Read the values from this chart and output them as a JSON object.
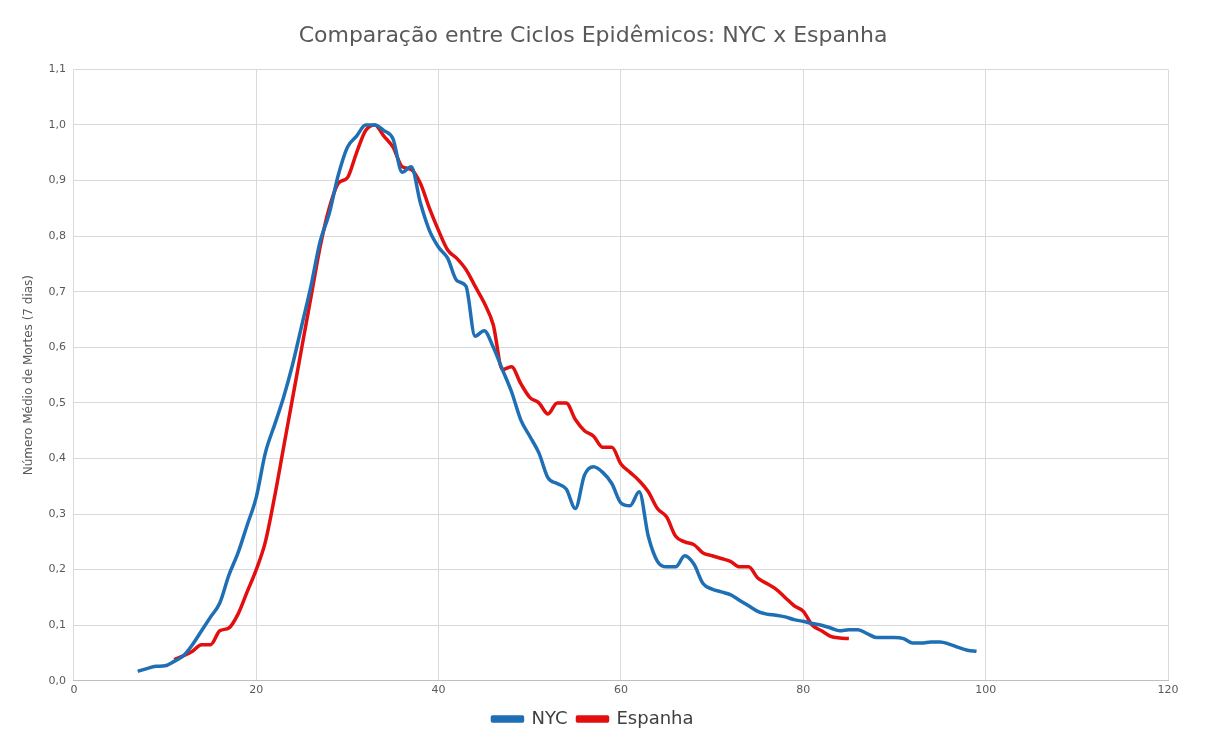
{
  "chart_data": {
    "type": "line",
    "title": "Comparação entre Ciclos Epidêmicos: NYC x Espanha",
    "ylabel": "Número Médio de Mortes (7 dias)",
    "xlim": [
      0,
      120
    ],
    "xticks": [
      0,
      20,
      40,
      60,
      80,
      100,
      120
    ],
    "ylim": [
      0,
      1.1
    ],
    "yticks": [
      {
        "value": 0,
        "label": "0,0"
      },
      {
        "value": 0.1,
        "label": "0,1"
      },
      {
        "value": 0.2,
        "label": "0,2"
      },
      {
        "value": 0.3,
        "label": "0,3"
      },
      {
        "value": 0.4,
        "label": "0,4"
      },
      {
        "value": 0.5,
        "label": "0,5"
      },
      {
        "value": 0.6,
        "label": "0,6"
      },
      {
        "value": 0.7,
        "label": "0,7"
      },
      {
        "value": 0.8,
        "label": "0,8"
      },
      {
        "value": 0.9,
        "label": "0,9"
      },
      {
        "value": 1,
        "label": "1,0"
      },
      {
        "value": 1.1,
        "label": "1,1"
      }
    ],
    "grid": true,
    "legend": "bottom",
    "marker": "none",
    "line_style": "solid",
    "series": [
      {
        "name": "NYC",
        "color": "#1f6fb5",
        "x": [
          7,
          8,
          9,
          10,
          11,
          12,
          13,
          14,
          15,
          16,
          17,
          18,
          19,
          20,
          21,
          22,
          23,
          24,
          25,
          26,
          27,
          28,
          29,
          30,
          31,
          32,
          33,
          34,
          35,
          36,
          37,
          38,
          39,
          40,
          41,
          42,
          43,
          44,
          45,
          46,
          47,
          48,
          49,
          50,
          51,
          52,
          53,
          54,
          55,
          56,
          57,
          58,
          59,
          60,
          61,
          62,
          63,
          64,
          65,
          66,
          67,
          68,
          69,
          70,
          71,
          72,
          73,
          74,
          75,
          76,
          77,
          78,
          79,
          80,
          81,
          82,
          83,
          84,
          85,
          86,
          87,
          88,
          89,
          90,
          91,
          92,
          93,
          94,
          95,
          96,
          97,
          98,
          99
        ],
        "values": [
          0.017,
          0.022,
          0.026,
          0.027,
          0.035,
          0.045,
          0.065,
          0.09,
          0.115,
          0.14,
          0.19,
          0.23,
          0.28,
          0.33,
          0.41,
          0.46,
          0.51,
          0.57,
          0.64,
          0.71,
          0.79,
          0.84,
          0.91,
          0.96,
          0.98,
          1.0,
          1.0,
          0.99,
          0.975,
          0.915,
          0.925,
          0.86,
          0.81,
          0.78,
          0.76,
          0.72,
          0.71,
          0.62,
          0.63,
          0.6,
          0.56,
          0.52,
          0.47,
          0.44,
          0.41,
          0.365,
          0.355,
          0.345,
          0.31,
          0.37,
          0.385,
          0.375,
          0.355,
          0.32,
          0.315,
          0.34,
          0.26,
          0.215,
          0.205,
          0.205,
          0.225,
          0.21,
          0.175,
          0.165,
          0.16,
          0.155,
          0.145,
          0.135,
          0.125,
          0.12,
          0.118,
          0.115,
          0.11,
          0.107,
          0.103,
          0.1,
          0.095,
          0.09,
          0.092,
          0.092,
          0.085,
          0.078,
          0.078,
          0.078,
          0.076,
          0.068,
          0.068,
          0.07,
          0.07,
          0.066,
          0.06,
          0.055,
          0.053
        ]
      },
      {
        "name": "Espanha",
        "color": "#e30e0e",
        "x": [
          11,
          12,
          13,
          14,
          15,
          16,
          17,
          18,
          19,
          20,
          21,
          22,
          23,
          24,
          25,
          26,
          27,
          28,
          29,
          30,
          31,
          32,
          33,
          34,
          35,
          36,
          37,
          38,
          39,
          40,
          41,
          42,
          43,
          44,
          45,
          46,
          47,
          48,
          49,
          50,
          51,
          52,
          53,
          54,
          55,
          56,
          57,
          58,
          59,
          60,
          61,
          62,
          63,
          64,
          65,
          66,
          67,
          68,
          69,
          70,
          71,
          72,
          73,
          74,
          75,
          76,
          77,
          78,
          79,
          80,
          81,
          82,
          83,
          84,
          85
        ],
        "values": [
          0.038,
          0.045,
          0.053,
          0.065,
          0.065,
          0.09,
          0.095,
          0.12,
          0.16,
          0.2,
          0.25,
          0.33,
          0.42,
          0.51,
          0.6,
          0.69,
          0.78,
          0.85,
          0.895,
          0.905,
          0.95,
          0.99,
          1.0,
          0.98,
          0.96,
          0.925,
          0.92,
          0.895,
          0.85,
          0.81,
          0.775,
          0.76,
          0.74,
          0.71,
          0.68,
          0.64,
          0.56,
          0.565,
          0.535,
          0.51,
          0.5,
          0.48,
          0.5,
          0.5,
          0.47,
          0.45,
          0.44,
          0.42,
          0.42,
          0.39,
          0.375,
          0.36,
          0.34,
          0.31,
          0.295,
          0.26,
          0.25,
          0.245,
          0.23,
          0.225,
          0.22,
          0.215,
          0.205,
          0.205,
          0.185,
          0.175,
          0.165,
          0.15,
          0.135,
          0.125,
          0.1,
          0.09,
          0.08,
          0.077,
          0.076
        ]
      }
    ]
  }
}
